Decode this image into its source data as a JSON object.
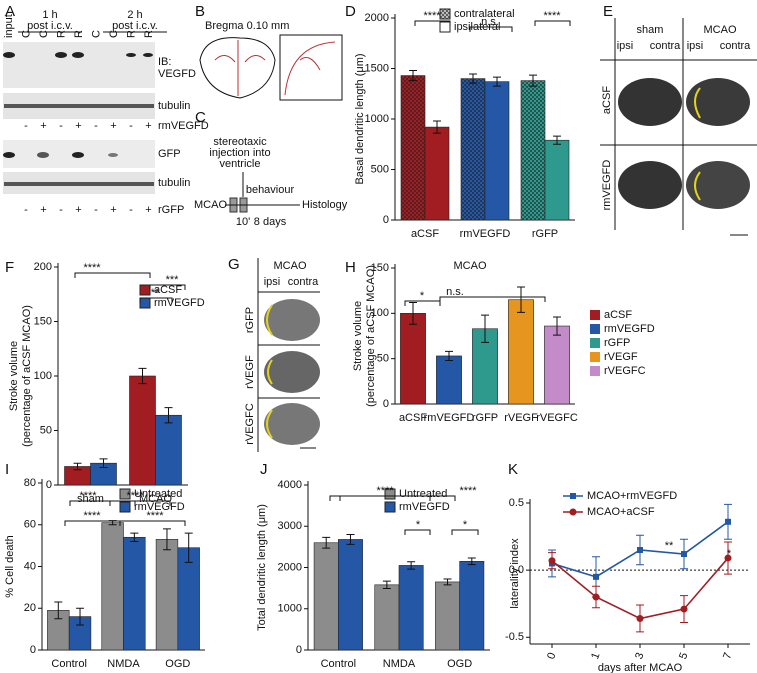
{
  "panel_labels": [
    "A",
    "B",
    "C",
    "D",
    "E",
    "F",
    "G",
    "H",
    "I",
    "J",
    "K"
  ],
  "blot": {
    "groups": [
      [
        "1 h",
        "post i.c.v."
      ],
      [
        "2 h",
        "post i.c.v."
      ]
    ],
    "lanes": [
      "input",
      "C",
      "C",
      "R",
      "R",
      "C",
      "C",
      "R",
      "R"
    ],
    "rows": [
      "IB:",
      "VEGFD",
      "tubulin",
      "rmVEGFD",
      "GFP",
      "tubulin",
      "rGFP"
    ],
    "signs_rmVEGFD": [
      "-",
      "+",
      "-",
      "+",
      "-",
      "+",
      "-",
      "+"
    ],
    "signs_rGFP": [
      "-",
      "+",
      "-",
      "+",
      "-",
      "+",
      "-",
      "+"
    ]
  },
  "section": {
    "title": "Bregma 0.10 mm"
  },
  "timeline": {
    "injection": [
      "stereotaxic",
      "injection into",
      "ventricle"
    ],
    "start": "MCAO",
    "behaviour": "behaviour",
    "delay": "10'",
    "duration": "8 days",
    "end": "Histology"
  },
  "brains_e": {
    "columns": [
      "sham",
      "MCAO"
    ],
    "sides": [
      "ipsi",
      "contra",
      "ipsi",
      "contra"
    ],
    "rows": [
      "aCSF",
      "rmVEGFD"
    ]
  },
  "brains_g": {
    "title": "MCAO",
    "sides": [
      "ipsi",
      "contra"
    ],
    "rows": [
      "rGFP",
      "rVEGF",
      "rVEGFC"
    ]
  },
  "chart_data": [
    {
      "type": "bar",
      "ylabel": [
        "Basal dendritic length (μm)"
      ],
      "categories": [
        "aCSF",
        "rmVEGFD",
        "rGFP"
      ],
      "colors": [
        "#a11d21",
        "#2458a6",
        "#2e9a8e"
      ],
      "series": [
        {
          "name": "contralateral",
          "pattern": "checkered",
          "values": [
            1430,
            1400,
            1380
          ],
          "errors": [
            50,
            45,
            55
          ]
        },
        {
          "name": "ipsilateral",
          "values": [
            920,
            1370,
            790
          ],
          "errors": [
            60,
            45,
            40
          ]
        }
      ],
      "ylim": [
        0,
        2000
      ],
      "yticks": [
        0,
        500,
        1000,
        1500,
        2000
      ],
      "legend": "top",
      "annotations": [
        "****",
        "n.s.",
        "****"
      ]
    },
    {
      "type": "bar",
      "ylabel": [
        "Stroke volume",
        "(percentage of aCSF MCAO)"
      ],
      "categories": [
        "sham",
        "MCAO"
      ],
      "series": [
        {
          "name": "aCSF",
          "color": "#a11d21",
          "values": [
            17,
            100
          ],
          "errors": [
            3,
            7
          ]
        },
        {
          "name": "rmVEGFD",
          "color": "#2458a6",
          "values": [
            20,
            64
          ],
          "errors": [
            4,
            7
          ]
        }
      ],
      "ylim": [
        0,
        200
      ],
      "yticks": [
        0,
        50,
        100,
        150,
        200
      ],
      "legend": "top-right",
      "annotations": [
        "****",
        "***",
        "**"
      ]
    },
    {
      "type": "bar",
      "title": "MCAO",
      "ylabel": [
        "Stroke volume",
        "(percentage of aCSF MCAO)"
      ],
      "categories": [
        "aCSF",
        "rmVEGFD",
        "rGFP",
        "rVEGF",
        "rVEGFC"
      ],
      "colors": [
        "#a11d21",
        "#2458a6",
        "#2e9a8e",
        "#e6961e",
        "#c38cc8"
      ],
      "values": [
        100,
        53,
        83,
        115,
        86
      ],
      "errors": [
        12,
        5,
        15,
        14,
        10
      ],
      "ylim": [
        0,
        150
      ],
      "yticks": [
        0,
        50,
        100,
        150
      ],
      "legend": "right",
      "annotations": [
        "*",
        "n.s."
      ]
    },
    {
      "type": "bar",
      "ylabel": [
        "% Cell death"
      ],
      "categories": [
        "Control",
        "NMDA",
        "OGD"
      ],
      "series": [
        {
          "name": "Untreated",
          "color": "#8c8c8c",
          "values": [
            19,
            61,
            53
          ],
          "errors": [
            4,
            1,
            5
          ]
        },
        {
          "name": "rmVEGFD",
          "color": "#2458a6",
          "values": [
            16,
            54,
            49
          ],
          "errors": [
            4,
            2,
            7
          ]
        }
      ],
      "ylim": [
        0,
        80
      ],
      "yticks": [
        0,
        20,
        40,
        60,
        80
      ],
      "legend": "top-right",
      "annotations": [
        "****",
        "****",
        "****",
        "****"
      ]
    },
    {
      "type": "bar",
      "ylabel": [
        "Total dendritic length (μm)"
      ],
      "categories": [
        "Control",
        "NMDA",
        "OGD"
      ],
      "series": [
        {
          "name": "Untreated",
          "color": "#8c8c8c",
          "values": [
            2600,
            1580,
            1650
          ],
          "errors": [
            130,
            90,
            70
          ]
        },
        {
          "name": "rmVEGFD",
          "color": "#2458a6",
          "values": [
            2680,
            2050,
            2150
          ],
          "errors": [
            120,
            90,
            80
          ]
        }
      ],
      "ylim": [
        0,
        4000
      ],
      "yticks": [
        0,
        1000,
        2000,
        3000,
        4000
      ],
      "legend": "top-right",
      "annotations": [
        "****",
        "****",
        "*",
        "*"
      ]
    },
    {
      "type": "line",
      "xlabel": "days after MCAO",
      "ylabel": [
        "laterality index"
      ],
      "categories": [
        "0",
        "1",
        "3",
        "5",
        "7"
      ],
      "series": [
        {
          "name": "MCAO+rmVEGFD",
          "color": "#2458a6",
          "marker": "square",
          "values": [
            0.05,
            -0.05,
            0.15,
            0.12,
            0.36
          ],
          "errors": [
            0.1,
            0.15,
            0.11,
            0.11,
            0.13
          ]
        },
        {
          "name": "MCAO+aCSF",
          "color": "#a11d21",
          "marker": "circle",
          "values": [
            0.07,
            -0.2,
            -0.36,
            -0.29,
            0.09
          ],
          "errors": [
            0.06,
            0.08,
            0.1,
            0.1,
            0.12
          ]
        }
      ],
      "ylim": [
        -0.55,
        0.5
      ],
      "yticks": [
        {
          "value": -0.5,
          "label": "-0.5"
        },
        {
          "value": 0,
          "label": "0.0"
        },
        {
          "value": 0.5,
          "label": "0.5"
        }
      ],
      "legend": "top",
      "annotations": [
        "**",
        "*"
      ]
    }
  ]
}
